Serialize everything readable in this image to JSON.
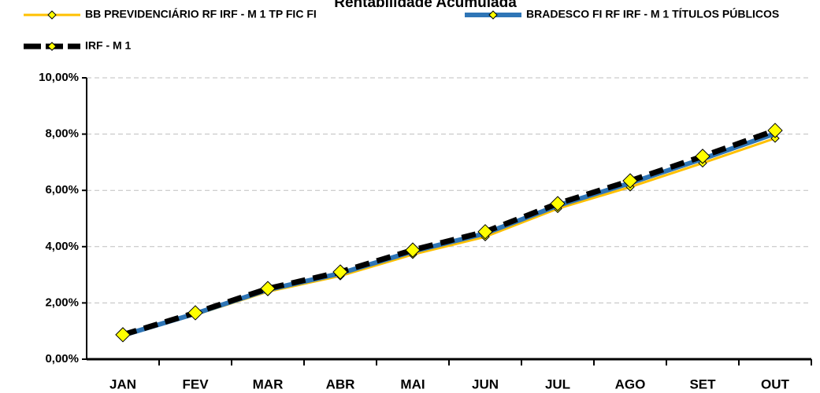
{
  "chart_data": {
    "type": "line",
    "title": "Rentabilidade Acumulada",
    "categories": [
      "JAN",
      "FEV",
      "MAR",
      "ABR",
      "MAI",
      "JUN",
      "JUL",
      "AGO",
      "SET",
      "OUT"
    ],
    "series": [
      {
        "name": "BB PREVIDENCIÁRIO RF IRF - M 1 TP FIC FI",
        "color": "#FFC000",
        "values": [
          0.82,
          1.58,
          2.4,
          2.96,
          3.72,
          4.35,
          5.35,
          6.12,
          6.97,
          7.85
        ]
      },
      {
        "name": "BRADESCO FI RF IRF - M 1 TÍTULOS PÚBLICOS",
        "color": "#2E75B6",
        "values": [
          0.85,
          1.62,
          2.47,
          3.05,
          3.83,
          4.47,
          5.46,
          6.26,
          7.12,
          8.02
        ]
      },
      {
        "name": "IRF - M 1",
        "color": "#000000",
        "values": [
          0.87,
          1.65,
          2.51,
          3.1,
          3.88,
          4.53,
          5.53,
          6.34,
          7.21,
          8.13
        ]
      }
    ],
    "ylim": [
      0,
      10
    ],
    "yticks": [
      {
        "value": 0,
        "label": "0,00%"
      },
      {
        "value": 2,
        "label": "2,00%"
      },
      {
        "value": 4,
        "label": "4,00%"
      },
      {
        "value": 6,
        "label": "6,00%"
      },
      {
        "value": 8,
        "label": "8,00%"
      },
      {
        "value": 10,
        "label": "10,00%"
      }
    ],
    "grid": true
  }
}
